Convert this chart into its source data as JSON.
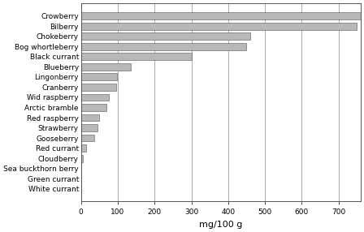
{
  "categories": [
    "White currant",
    "Green currant",
    "Sea buckthorn berry",
    "Cloudberry",
    "Red currant",
    "Gooseberry",
    "Strawberry",
    "Red raspberry",
    "Arctic bramble",
    "Wid raspberry",
    "Cranberry",
    "Lingonberry",
    "Blueberry",
    "Black currant",
    "Bog whortleberry",
    "Chokeberry",
    "Bilberry",
    "Crowberry"
  ],
  "values": [
    0,
    0,
    0,
    5,
    15,
    35,
    45,
    50,
    70,
    75,
    95,
    98,
    135,
    300,
    450,
    460,
    750,
    760
  ],
  "bar_color": "#b8b8b8",
  "bar_edgecolor": "#555555",
  "background_color": "#ffffff",
  "xlabel": "mg/100 g",
  "xlim": [
    0,
    760
  ],
  "xticks": [
    0,
    100,
    200,
    300,
    400,
    500,
    600,
    700
  ],
  "grid_color": "#888888",
  "title": "",
  "bar_height": 0.7,
  "tick_fontsize": 6.5,
  "xlabel_fontsize": 8
}
